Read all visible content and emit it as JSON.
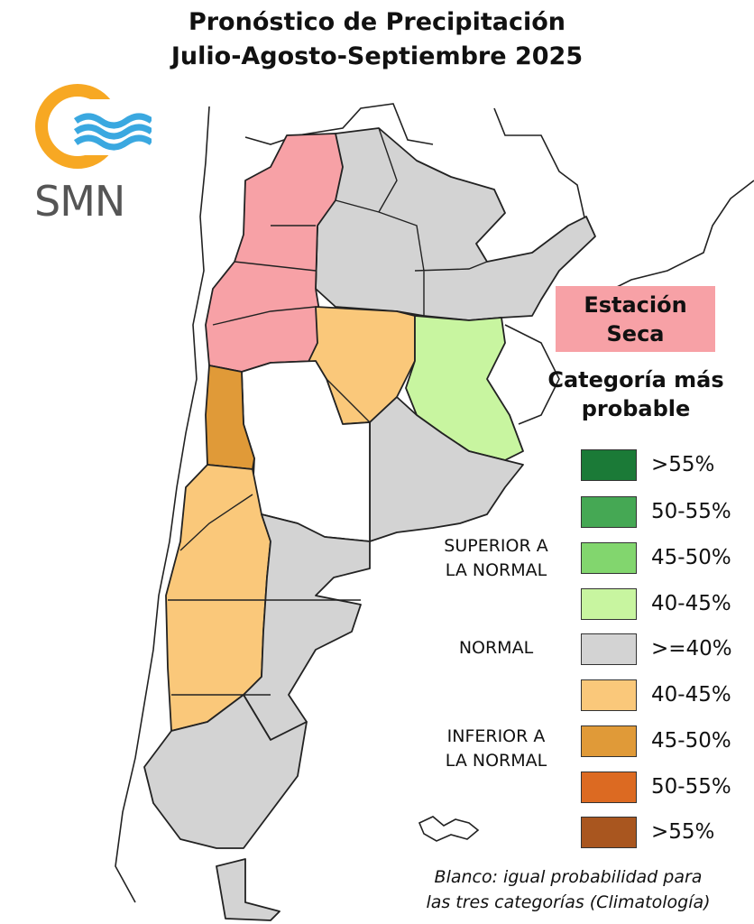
{
  "title": {
    "line1": "Pronóstico de Precipitación",
    "line2": "Julio-Agosto-Septiembre 2025"
  },
  "logo": {
    "text": "SMN",
    "colors": {
      "sun": "#f7a823",
      "waves": "#3aa8e0"
    }
  },
  "season_box": {
    "line1": "Estación",
    "line2": "Seca",
    "color": "#f7a1a6"
  },
  "legend": {
    "heading_line1": "Categoría más",
    "heading_line2": "probable",
    "groups": {
      "superior_line1": "SUPERIOR A",
      "superior_line2": "LA NORMAL",
      "normal": "NORMAL",
      "inferior_line1": "INFERIOR A",
      "inferior_line2": "LA NORMAL"
    },
    "items": [
      {
        "label": ">55%",
        "color": "#1b7a37"
      },
      {
        "label": "50-55%",
        "color": "#45a854"
      },
      {
        "label": "45-50%",
        "color": "#82d66e"
      },
      {
        "label": "40-45%",
        "color": "#c8f5a0"
      },
      {
        "label": ">=40%",
        "color": "#d3d3d3"
      },
      {
        "label": "40-45%",
        "color": "#fac87a"
      },
      {
        "label": "45-50%",
        "color": "#e09a38"
      },
      {
        "label": "50-55%",
        "color": "#dc6a22"
      },
      {
        "label": ">55%",
        "color": "#a9561f"
      }
    ]
  },
  "footnote": {
    "line1": "Blanco: igual probabilidad para",
    "line2": "las tres categorías (Climatología)"
  },
  "map_colors": {
    "dry_season": "#f7a1a6",
    "normal": "#d3d3d3",
    "below_40_45": "#fac87a",
    "below_45_50": "#e09a38",
    "above_40_45": "#c8f5a0",
    "climatology": "#ffffff"
  }
}
